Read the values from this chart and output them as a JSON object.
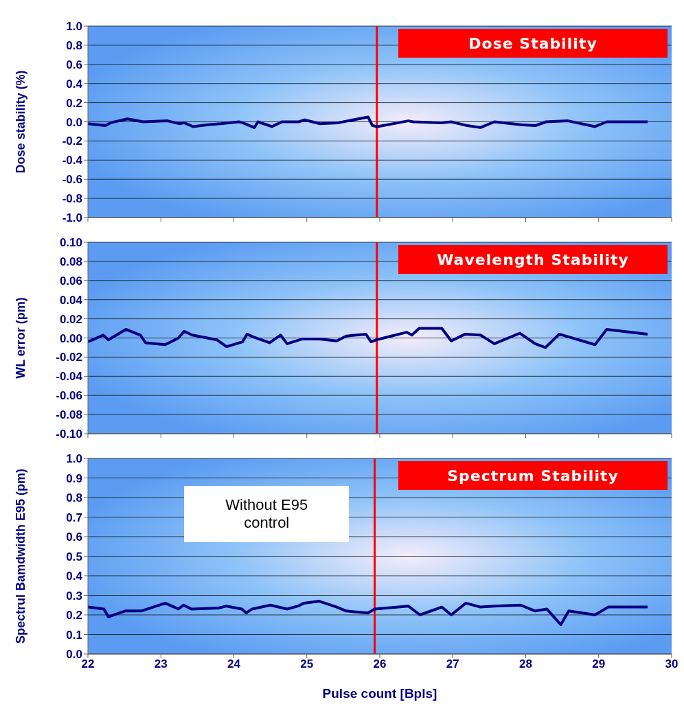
{
  "chart_data": [
    {
      "type": "line",
      "ylabel": "Dose stability (%)",
      "annotations": [
        "Dose Stability"
      ],
      "xlim": [
        22,
        30
      ],
      "xticks": [
        22,
        23,
        24,
        25,
        26,
        27,
        28,
        29,
        30
      ],
      "ylim": [
        -1,
        1
      ],
      "yticks": [
        {
          "value": -1,
          "label": "-1.0"
        },
        -0.8,
        -0.6,
        -0.4,
        -0.2,
        {
          "value": 0,
          "label": "0.0"
        },
        0.2,
        0.4,
        0.6,
        0.8,
        {
          "value": 1,
          "label": "1.0"
        }
      ],
      "grid": "y",
      "tick_labels": "y",
      "marker": "none",
      "line_style": "solid",
      "ref_lines": [
        {
          "axis": "x",
          "value": 25.96,
          "color": "#ff0000"
        }
      ],
      "series": [
        {
          "color": "#000080",
          "x": [
            22.0,
            22.24,
            22.31,
            22.54,
            22.76,
            23.09,
            23.26,
            23.32,
            23.44,
            23.65,
            23.82,
            24.07,
            24.12,
            24.28,
            24.33,
            24.52,
            24.66,
            24.89,
            24.97,
            25.18,
            25.43,
            25.84,
            25.9,
            25.97,
            26.39,
            26.46,
            26.84,
            26.98,
            27.2,
            27.38,
            27.57,
            27.94,
            28.13,
            28.28,
            28.58,
            28.95,
            29.11,
            29.67
          ],
          "values": [
            -0.02,
            -0.04,
            -0.01,
            0.03,
            0,
            0.01,
            -0.02,
            -0.01,
            -0.05,
            -0.03,
            -0.02,
            0,
            -0.01,
            -0.06,
            0,
            -0.05,
            0,
            0,
            0.02,
            -0.02,
            -0.01,
            0.05,
            -0.04,
            -0.05,
            0.01,
            0,
            -0.01,
            0,
            -0.04,
            -0.06,
            0,
            -0.03,
            -0.04,
            0,
            0.01,
            -0.05,
            0,
            0
          ]
        }
      ]
    },
    {
      "type": "line",
      "ylabel": "WL error (pm)",
      "annotations": [
        "Wavelength Stability"
      ],
      "xlim": [
        22,
        30
      ],
      "xticks": [
        22,
        23,
        24,
        25,
        26,
        27,
        28,
        29,
        30
      ],
      "ylim": [
        -0.1,
        0.1
      ],
      "yticks": [
        {
          "value": -0.1,
          "label": "-0.10"
        },
        -0.08,
        -0.06,
        -0.04,
        -0.02,
        {
          "value": 0,
          "label": "0.00"
        },
        0.02,
        0.04,
        0.06,
        0.08,
        {
          "value": 0.1,
          "label": "0.10"
        }
      ],
      "grid": "y",
      "tick_labels": "y",
      "marker": "none",
      "line_style": "solid",
      "ref_lines": [
        {
          "axis": "x",
          "value": 25.96,
          "color": "#ff0000"
        }
      ],
      "series": [
        {
          "color": "#000080",
          "x": [
            22.0,
            22.21,
            22.28,
            22.52,
            22.72,
            22.79,
            23.06,
            23.24,
            23.32,
            23.43,
            23.77,
            23.9,
            24.12,
            24.18,
            24.27,
            24.49,
            24.64,
            24.73,
            24.94,
            25.17,
            25.41,
            25.54,
            25.81,
            25.88,
            25.95,
            26.37,
            26.44,
            26.54,
            26.85,
            26.98,
            27.17,
            27.38,
            27.57,
            27.92,
            28.13,
            28.27,
            28.46,
            28.95,
            29.11,
            29.67
          ],
          "values": [
            -0.004,
            0.003,
            -0.002,
            0.009,
            0.003,
            -0.005,
            -0.007,
            0,
            0.007,
            0.003,
            -0.002,
            -0.009,
            -0.004,
            0.004,
            0.001,
            -0.005,
            0.003,
            -0.006,
            -0.001,
            -0.001,
            -0.003,
            0.002,
            0.004,
            -0.004,
            -0.002,
            0.006,
            0.003,
            0.01,
            0.01,
            -0.003,
            0.004,
            0.003,
            -0.006,
            0.005,
            -0.006,
            -0.01,
            0.004,
            -0.007,
            0.009,
            0.004
          ]
        }
      ]
    },
    {
      "type": "line",
      "ylabel": "Spectrul Bamdwidth E95 (pm)",
      "xlabel": "Pulse count [Bpls]",
      "annotations": [
        "Spectrum Stability",
        "Without E95\ncontrol"
      ],
      "xlim": [
        22,
        30
      ],
      "xticks": [
        22,
        23,
        24,
        25,
        26,
        27,
        28,
        29,
        30
      ],
      "ylim": [
        0,
        1
      ],
      "yticks": [
        {
          "value": 0,
          "label": "0.0"
        },
        0.1,
        0.2,
        0.3,
        0.4,
        0.5,
        0.6,
        0.7,
        0.8,
        0.9,
        {
          "value": 1,
          "label": "1.0"
        }
      ],
      "grid": "y",
      "marker": "none",
      "line_style": "solid",
      "ref_lines": [
        {
          "axis": "x",
          "value": 25.93,
          "color": "#ff0000"
        }
      ],
      "series": [
        {
          "color": "#000080",
          "x": [
            22.0,
            22.22,
            22.28,
            22.51,
            22.73,
            23.06,
            23.24,
            23.31,
            23.42,
            23.79,
            23.9,
            24.11,
            24.17,
            24.25,
            24.5,
            24.73,
            24.88,
            24.96,
            25.17,
            25.41,
            25.54,
            25.84,
            25.93,
            26.39,
            26.55,
            26.85,
            26.98,
            27.18,
            27.38,
            27.57,
            27.93,
            28.13,
            28.29,
            28.48,
            28.59,
            28.95,
            29.13,
            29.67
          ],
          "values": [
            0.24,
            0.23,
            0.19,
            0.22,
            0.22,
            0.26,
            0.23,
            0.25,
            0.23,
            0.235,
            0.245,
            0.23,
            0.21,
            0.23,
            0.25,
            0.23,
            0.245,
            0.26,
            0.27,
            0.24,
            0.22,
            0.21,
            0.23,
            0.245,
            0.2,
            0.24,
            0.2,
            0.26,
            0.24,
            0.245,
            0.25,
            0.22,
            0.23,
            0.15,
            0.22,
            0.2,
            0.24,
            0.24
          ]
        }
      ]
    }
  ]
}
